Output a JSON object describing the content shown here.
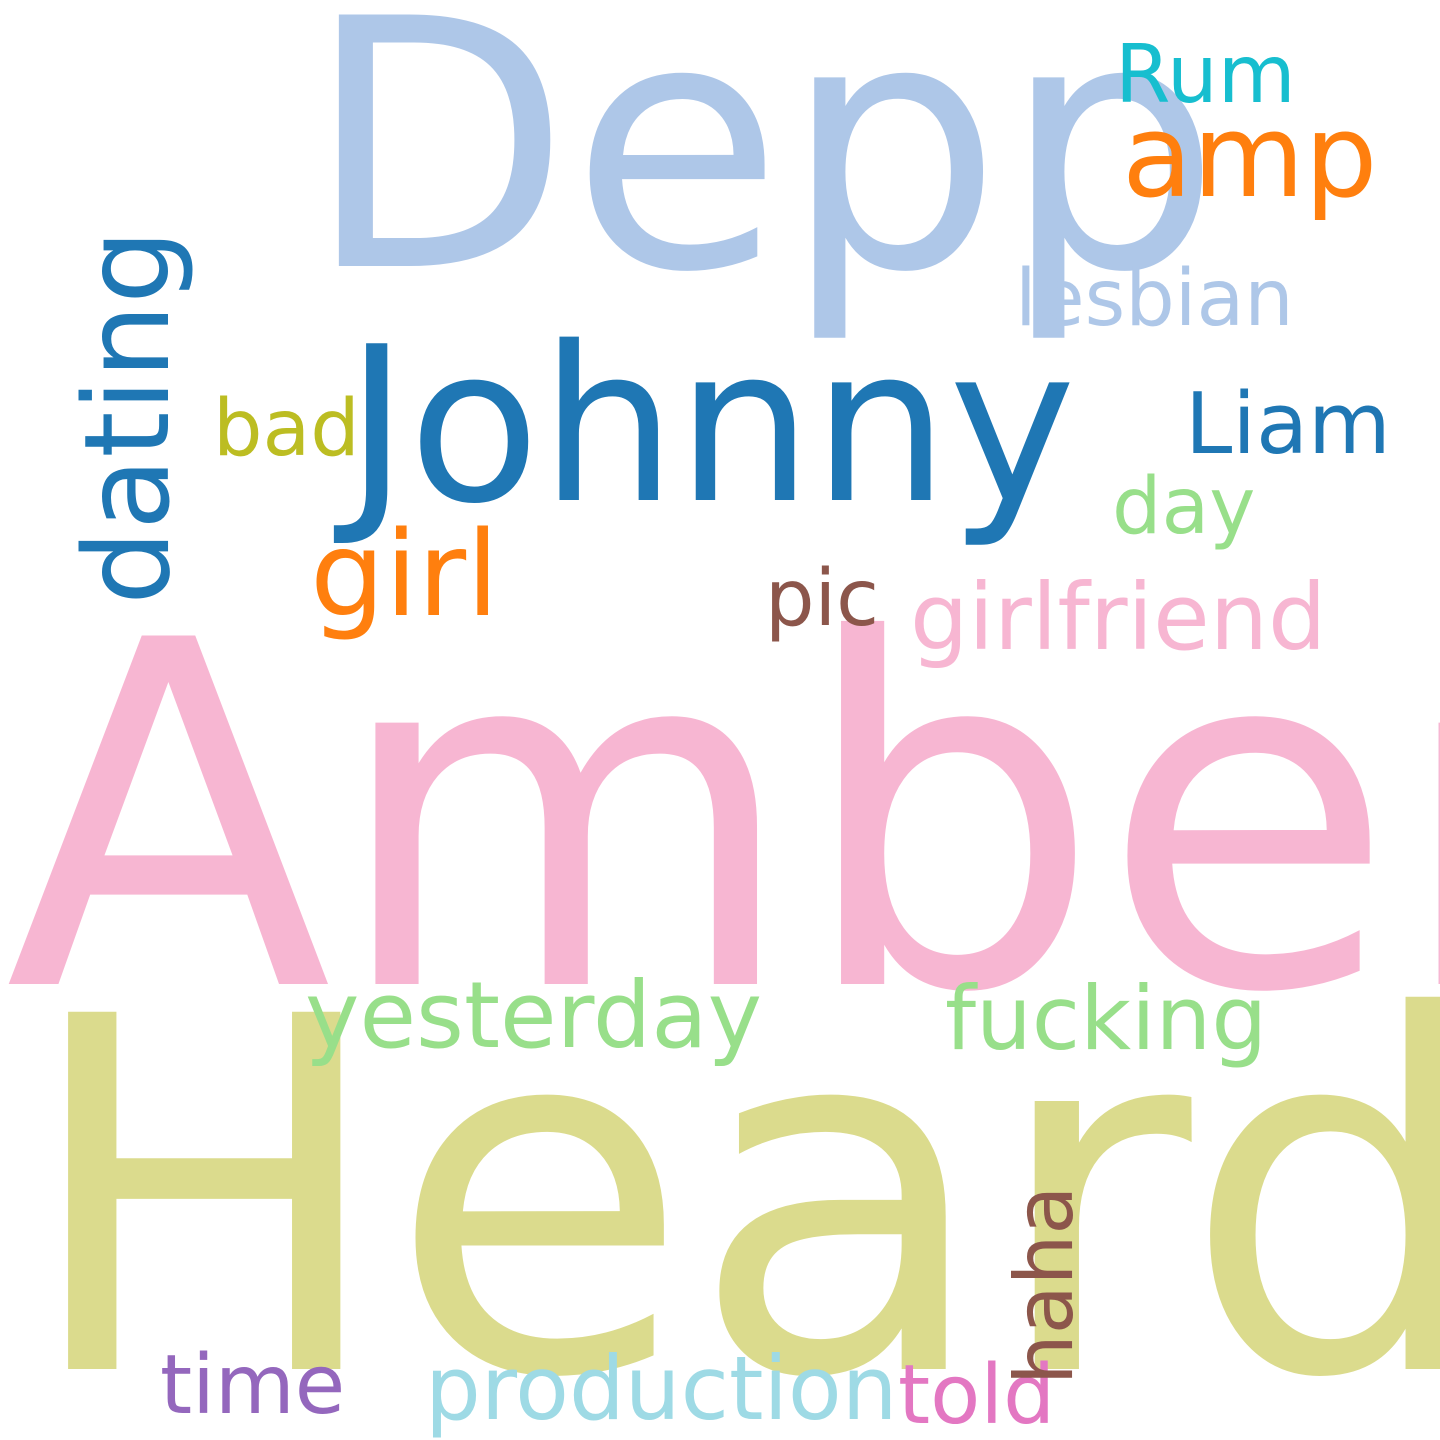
{
  "words": {
    "amber": {
      "text": "Amber",
      "color": "#f7b6d2"
    },
    "heard": {
      "text": "Heard",
      "color": "#dbdb8d"
    },
    "depp": {
      "text": "Depp",
      "color": "#aec7e8"
    },
    "johnny": {
      "text": "Johnny",
      "color": "#1f77b4"
    },
    "dating": {
      "text": "dating",
      "color": "#1f77b4"
    },
    "amp": {
      "text": "amp",
      "color": "#ff7f0e"
    },
    "girl": {
      "text": "girl",
      "color": "#ff7f0e"
    },
    "girlfriend": {
      "text": "girlfriend",
      "color": "#f7b6d2"
    },
    "yesterday": {
      "text": "yesterday",
      "color": "#98df8a"
    },
    "fucking": {
      "text": "fucking",
      "color": "#98df8a"
    },
    "production": {
      "text": "production",
      "color": "#9edae5"
    },
    "liam": {
      "text": "Liam",
      "color": "#1f77b4"
    },
    "time": {
      "text": "time",
      "color": "#9467bd"
    },
    "told": {
      "text": "told",
      "color": "#e377c2"
    },
    "haha": {
      "text": "haha",
      "color": "#8c564b"
    },
    "rum": {
      "text": "Rum",
      "color": "#17becf"
    },
    "lesbian": {
      "text": "lesbian",
      "color": "#aec7e8"
    },
    "bad": {
      "text": "bad",
      "color": "#bcbd22"
    },
    "day": {
      "text": "day",
      "color": "#98df8a"
    },
    "pic": {
      "text": "pic",
      "color": "#8c564b"
    }
  }
}
